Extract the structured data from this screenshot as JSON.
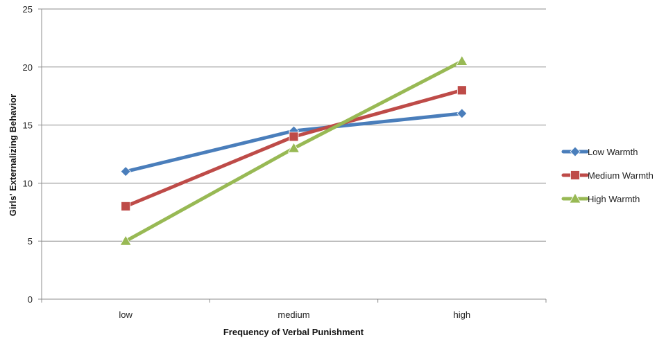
{
  "chart_data": {
    "type": "line",
    "categories": [
      "low",
      "medium",
      "high"
    ],
    "series": [
      {
        "name": "Low Warmth",
        "values": [
          11,
          14.5,
          16
        ],
        "color": "#4a7ebb",
        "marker": "diamond"
      },
      {
        "name": "Medium Warmth",
        "values": [
          8,
          14,
          18
        ],
        "color": "#be4b48",
        "marker": "square"
      },
      {
        "name": "High Warmth",
        "values": [
          5,
          13,
          20.5
        ],
        "color": "#98b954",
        "marker": "triangle"
      }
    ],
    "title": "",
    "xlabel": "Frequency of Verbal Punishment",
    "ylabel": "Girls' Externalizing Behavior",
    "ylim": [
      0,
      25
    ],
    "yticks": [
      0,
      5,
      10,
      15,
      20,
      25
    ],
    "grid": "horizontal",
    "legend": "right"
  }
}
